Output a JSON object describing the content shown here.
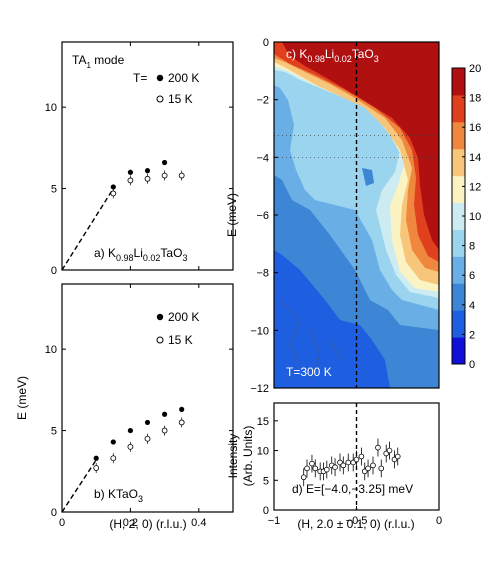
{
  "chart_data": [
    {
      "panel": "a",
      "type": "scatter",
      "mode_label": "TA",
      "mode_sub": "1",
      "mode_suffix": " mode",
      "legend_title": "T=",
      "series": [
        {
          "name": "200 K",
          "marker": "filled",
          "x": [
            0.15,
            0.2,
            0.25,
            0.3
          ],
          "y": [
            5.1,
            6.0,
            6.1,
            6.6
          ]
        },
        {
          "name": "15 K",
          "marker": "open",
          "x": [
            0.15,
            0.2,
            0.25,
            0.3,
            0.35
          ],
          "y": [
            4.7,
            5.5,
            5.6,
            5.8,
            5.8
          ]
        }
      ],
      "dashed_line": {
        "x": [
          0,
          0.15
        ],
        "y": [
          0,
          5.0
        ]
      },
      "compound_parts": [
        {
          "t": "a) K",
          "sub": false
        },
        {
          "t": "0.98",
          "sub": true
        },
        {
          "t": "Li",
          "sub": false
        },
        {
          "t": "0.02",
          "sub": true
        },
        {
          "t": "TaO",
          "sub": false
        },
        {
          "t": "3",
          "sub": true
        }
      ],
      "xlim": [
        0,
        0.5
      ],
      "ylim": [
        0,
        14
      ],
      "yticks": [
        "0",
        "5",
        "10"
      ]
    },
    {
      "panel": "b",
      "type": "scatter",
      "series": [
        {
          "name": "200 K",
          "marker": "filled",
          "x": [
            0.1,
            0.15,
            0.2,
            0.25,
            0.3,
            0.35
          ],
          "y": [
            3.3,
            4.3,
            5.0,
            5.5,
            6.0,
            6.3
          ]
        },
        {
          "name": "15 K",
          "marker": "open",
          "x": [
            0.1,
            0.15,
            0.2,
            0.25,
            0.3,
            0.35
          ],
          "y": [
            2.7,
            3.3,
            4.0,
            4.5,
            5.0,
            5.5
          ]
        }
      ],
      "dashed_line": {
        "x": [
          0,
          0.1
        ],
        "y": [
          0,
          3.2
        ]
      },
      "compound_parts": [
        {
          "t": "b) KTaO",
          "sub": false
        },
        {
          "t": "3",
          "sub": true
        }
      ],
      "xlabel": "(H, 2, 0) (r.l.u.)",
      "ylabel": "E (meV)",
      "xlim": [
        0,
        0.5
      ],
      "ylim": [
        0,
        14
      ],
      "xticks": [
        "0",
        "0.2",
        "0.4"
      ],
      "yticks": [
        "0",
        "5",
        "10"
      ]
    },
    {
      "panel": "c",
      "type": "heatmap",
      "title_parts": [
        {
          "t": "c) K",
          "sub": false
        },
        {
          "t": "0.98",
          "sub": true
        },
        {
          "t": "Li",
          "sub": false
        },
        {
          "t": "0.02",
          "sub": true
        },
        {
          "t": "TaO",
          "sub": false
        },
        {
          "t": "3",
          "sub": true
        }
      ],
      "annotation": "T=300 K",
      "ylabel": "E (meV)",
      "xlim": [
        -1,
        0
      ],
      "ylim": [
        -12,
        0
      ],
      "yticks": [
        "0",
        "−2",
        "−4",
        "−6",
        "−8",
        "−10",
        "−12"
      ],
      "colorbar": {
        "range": [
          0,
          20
        ],
        "ticks": [
          "0",
          "2",
          "4",
          "6",
          "8",
          "10",
          "12",
          "14",
          "16",
          "18",
          "20"
        ],
        "colors": [
          "#1010d8",
          "#1e5ee0",
          "#3d86d6",
          "#6aaee6",
          "#9ad4ee",
          "#ccecf2",
          "#fbf3c2",
          "#f7c67a",
          "#f0873f",
          "#e0401e",
          "#b01010"
        ]
      },
      "vertical_dashed_x": -0.5,
      "grid": "dotted"
    },
    {
      "panel": "d",
      "type": "scatter",
      "annotation": "d) E=[−4.0,−3.25] meV",
      "xlabel": "(H, 2.0 ± 0.1, 0) (r.l.u.)",
      "ylabel_line1": "Intensity",
      "ylabel_line2": "(Arb. Units)",
      "x": [
        -0.82,
        -0.8,
        -0.77,
        -0.75,
        -0.72,
        -0.7,
        -0.68,
        -0.65,
        -0.63,
        -0.6,
        -0.58,
        -0.55,
        -0.52,
        -0.5,
        -0.47,
        -0.45,
        -0.43,
        -0.4,
        -0.37,
        -0.35,
        -0.32,
        -0.3,
        -0.27,
        -0.25
      ],
      "y": [
        5.5,
        7.0,
        7.8,
        7.0,
        6.5,
        6.5,
        6.8,
        7.5,
        7.2,
        8.0,
        7.5,
        8.0,
        8.0,
        8.5,
        9.0,
        6.5,
        7.0,
        7.5,
        10.5,
        7.0,
        9.5,
        10.0,
        8.5,
        9.0
      ],
      "err": 1.5,
      "vertical_dashed_x": -0.5,
      "xlim": [
        -1,
        0
      ],
      "ylim": [
        0,
        18
      ],
      "xticks": [
        "−1",
        "−0.5",
        "0"
      ],
      "yticks": [
        "0",
        "5",
        "10",
        "15"
      ]
    }
  ]
}
